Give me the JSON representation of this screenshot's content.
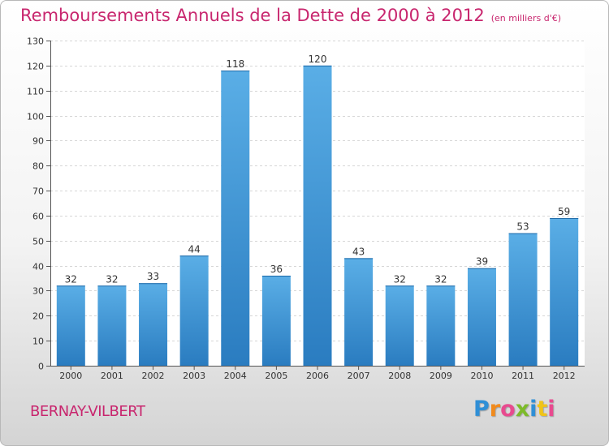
{
  "chart_data": {
    "type": "bar",
    "title": "Remboursements Annuels de la Dette de 2000 à 2012",
    "subtitle": "(en milliers d'€)",
    "categories": [
      "2000",
      "2001",
      "2002",
      "2003",
      "2004",
      "2005",
      "2006",
      "2007",
      "2008",
      "2009",
      "2010",
      "2011",
      "2012"
    ],
    "values": [
      32,
      32,
      33,
      44,
      118,
      36,
      120,
      43,
      32,
      32,
      39,
      53,
      59
    ],
    "ylim": [
      0,
      130
    ],
    "yticks": [
      0,
      10,
      20,
      30,
      40,
      50,
      60,
      70,
      80,
      90,
      100,
      110,
      120,
      130
    ],
    "grid": true,
    "xlabel": "",
    "ylabel": "",
    "bar_color_top": "#5aaee6",
    "bar_color_bottom": "#2a7cc0"
  },
  "place": "BERNAY-VILBERT",
  "logo": {
    "letters": [
      "P",
      "r",
      "o",
      "x",
      "i",
      "t",
      "i"
    ]
  },
  "colors": {
    "accent": "#c8266e"
  }
}
